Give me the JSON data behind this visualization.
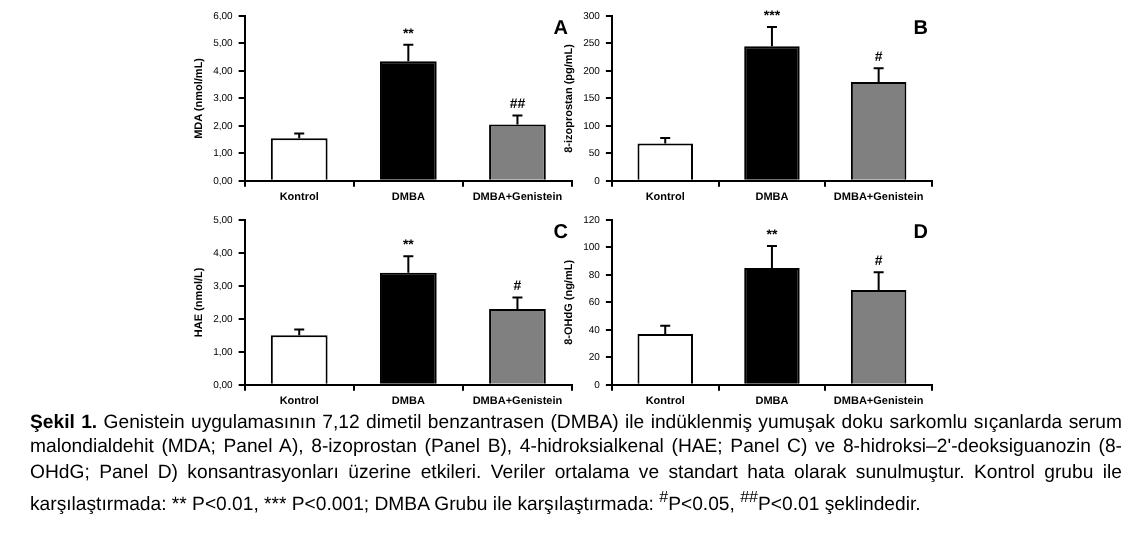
{
  "chart_data": [
    {
      "type": "bar",
      "title": "A",
      "ylabel": "MDA (nmol/mL)",
      "categories": [
        "Kontrol",
        "DMBA",
        "DMBA+Genistein"
      ],
      "values": [
        1.55,
        4.35,
        2.05
      ],
      "colors": [
        "#ffffff",
        "#000000",
        "#808080"
      ],
      "errors": [
        [
          1.55,
          1.72
        ],
        [
          4.35,
          4.95
        ],
        [
          2.05,
          2.38
        ]
      ],
      "ylim": [
        0,
        6
      ],
      "yticks": [
        {
          "value": 0,
          "label": "0,00"
        },
        {
          "value": 1,
          "label": "1,00"
        },
        {
          "value": 2,
          "label": "2,00"
        },
        {
          "value": 3,
          "label": "3,00"
        },
        {
          "value": 4,
          "label": "4,00"
        },
        {
          "value": 5,
          "label": "5,00"
        },
        {
          "value": 6,
          "label": "6,00"
        }
      ],
      "annotations": [
        {
          "text": "**",
          "x": "DMBA",
          "y": 4.95
        },
        {
          "text": "##",
          "x": "DMBA+Genistein",
          "y": 2.38
        }
      ],
      "grid": false,
      "legend": false
    },
    {
      "type": "bar",
      "title": "B",
      "ylabel": "8-izoprostan (pg/mL)",
      "categories": [
        "Kontrol",
        "DMBA",
        "DMBA+Genistein"
      ],
      "values": [
        68,
        245,
        180
      ],
      "colors": [
        "#ffffff",
        "#000000",
        "#808080"
      ],
      "errors": [
        [
          68,
          78
        ],
        [
          245,
          280
        ],
        [
          180,
          205
        ]
      ],
      "ylim": [
        0,
        300
      ],
      "yticks": [
        0,
        50,
        100,
        150,
        200,
        250,
        300
      ],
      "annotations": [
        {
          "text": "***",
          "x": "DMBA",
          "y": 280
        },
        {
          "text": "#",
          "x": "DMBA+Genistein",
          "y": 205
        }
      ],
      "grid": false,
      "legend": false
    },
    {
      "type": "bar",
      "title": "C",
      "ylabel": "HAE (nmol/L)",
      "categories": [
        "Kontrol",
        "DMBA",
        "DMBA+Genistein"
      ],
      "values": [
        1.5,
        3.4,
        2.3
      ],
      "colors": [
        "#ffffff",
        "#000000",
        "#808080"
      ],
      "errors": [
        [
          1.5,
          1.68
        ],
        [
          3.4,
          3.9
        ],
        [
          2.3,
          2.65
        ]
      ],
      "ylim": [
        0,
        5
      ],
      "yticks": [
        {
          "value": 0,
          "label": "0,00"
        },
        {
          "value": 1,
          "label": "1,00"
        },
        {
          "value": 2,
          "label": "2,00"
        },
        {
          "value": 3,
          "label": "3,00"
        },
        {
          "value": 4,
          "label": "4,00"
        },
        {
          "value": 5,
          "label": "5,00"
        }
      ],
      "annotations": [
        {
          "text": "**",
          "x": "DMBA",
          "y": 3.9
        },
        {
          "text": "#",
          "x": "DMBA+Genistein",
          "y": 2.65
        }
      ],
      "grid": false,
      "legend": false
    },
    {
      "type": "bar",
      "title": "D",
      "ylabel": "8-OHdG (ng/mL)",
      "categories": [
        "Kontrol",
        "DMBA",
        "DMBA+Genistein"
      ],
      "values": [
        37,
        85,
        69
      ],
      "colors": [
        "#ffffff",
        "#000000",
        "#808080"
      ],
      "errors": [
        [
          37,
          43
        ],
        [
          85,
          101
        ],
        [
          69,
          82
        ]
      ],
      "ylim": [
        0,
        120
      ],
      "yticks": [
        0,
        20,
        40,
        60,
        80,
        100,
        120
      ],
      "annotations": [
        {
          "text": "**",
          "x": "DMBA",
          "y": 101
        },
        {
          "text": "#",
          "x": "DMBA+Genistein",
          "y": 82
        }
      ],
      "grid": false,
      "legend": false
    },
    {
      "type": "other",
      "title": "Şekil 1.",
      "annotations": [
        "Genistein uygulamasının 7,12 dimetil benzantrasen (DMBA) ile indüklenmiş yumuşak doku sarkomlu sıçanlarda serum malondialdehit (MDA; Panel A), 8-izoprostan (Panel B), 4-hidroksialkenal (HAE; Panel C) ve 8-hidroksi–2'-deoksiguanozin (8-OHdG; Panel D) konsantrasyonları üzerine etkileri. Veriler ortalama ve standart hata olarak sunulmuştur. Kontrol grubu ile karşılaştırmada: ** P<0.01, *** P<0.001; DMBA Grubu ile karşılaştırmada: $^{#}$P<0.05, $^{##}$P<0.01 şeklindedir."
      ]
    }
  ]
}
